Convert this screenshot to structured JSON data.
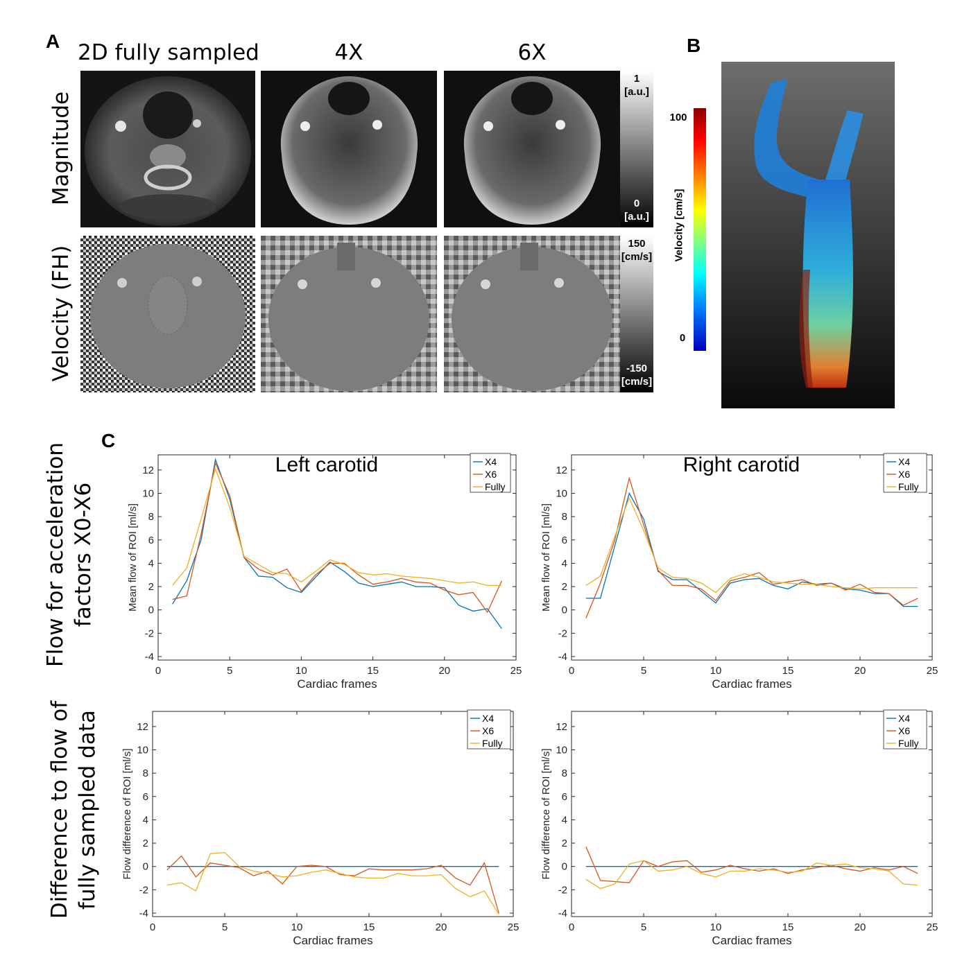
{
  "panels": {
    "a": "A",
    "b": "B",
    "c": "C"
  },
  "columns": [
    "2D fully sampled",
    "4X",
    "6X"
  ],
  "rows": [
    "Magnitude",
    "Velocity (FH)"
  ],
  "magnitude_colorbar": {
    "top_value": "1",
    "top_unit": "[a.u.]",
    "bottom_value": "0",
    "bottom_unit": "[a.u.]"
  },
  "velocity_colorbar": {
    "top_value": "150",
    "top_unit": "[cm/s]",
    "bottom_value": "-150",
    "bottom_unit": "[cm/s]"
  },
  "streamline_colorbar": {
    "label": "Velocity [cm/s]",
    "max": "100",
    "min": "0"
  },
  "section_c_rows": {
    "top": [
      "Flow for acceleration",
      "factors X0-X6"
    ],
    "bottom": [
      "Difference to flow of",
      "fully sampled data"
    ]
  },
  "colors": {
    "x4": "#0072BD",
    "x6": "#D95319",
    "fully": "#EDB120"
  },
  "chart_data": [
    {
      "type": "line",
      "title": "Left carotid",
      "xlabel": "Cardiac frames",
      "ylabel": "Mean flow of ROI [ml/s]",
      "xlim": [
        0,
        25
      ],
      "ylim": [
        -4.3,
        13.3
      ],
      "xticks": [
        0,
        5,
        10,
        15,
        20,
        25
      ],
      "yticks": [
        -4,
        -2,
        0,
        2,
        4,
        6,
        8,
        10,
        12
      ],
      "legend": "top-right",
      "x": [
        1,
        2,
        3,
        4,
        5,
        6,
        7,
        8,
        9,
        10,
        11,
        12,
        13,
        14,
        15,
        16,
        17,
        18,
        19,
        20,
        21,
        22,
        23,
        24
      ],
      "series": [
        {
          "name": "X4",
          "values": [
            0.5,
            2.5,
            6.0,
            12.9,
            9.5,
            4.5,
            2.9,
            2.8,
            1.9,
            1.5,
            2.8,
            4.1,
            3.3,
            2.3,
            2.0,
            2.2,
            2.4,
            2.0,
            2.0,
            1.9,
            0.4,
            -0.1,
            0.1,
            -1.6
          ]
        },
        {
          "name": "X6",
          "values": [
            0.9,
            1.2,
            6.5,
            12.6,
            9.8,
            4.5,
            3.5,
            3.0,
            3.5,
            1.6,
            3.0,
            4.0,
            4.0,
            3.0,
            2.2,
            2.4,
            2.7,
            2.4,
            2.3,
            1.7,
            1.3,
            1.5,
            -0.2,
            2.5
          ]
        },
        {
          "name": "Fully",
          "values": [
            2.1,
            3.6,
            7.8,
            12.1,
            8.8,
            4.6,
            3.9,
            3.2,
            3.1,
            2.4,
            3.3,
            4.3,
            3.9,
            3.2,
            3.0,
            3.1,
            2.9,
            2.8,
            2.7,
            2.5,
            2.3,
            2.4,
            2.1,
            2.1
          ]
        }
      ]
    },
    {
      "type": "line",
      "title": "Right carotid",
      "xlabel": "Cardiac frames",
      "ylabel": "Mean flow of ROI [ml/s]",
      "xlim": [
        0,
        25
      ],
      "ylim": [
        -4.3,
        13.3
      ],
      "xticks": [
        0,
        5,
        10,
        15,
        20,
        25
      ],
      "yticks": [
        -4,
        -2,
        0,
        2,
        4,
        6,
        8,
        10,
        12
      ],
      "legend": "top-right",
      "x": [
        1,
        2,
        3,
        4,
        5,
        6,
        7,
        8,
        9,
        10,
        11,
        12,
        13,
        14,
        15,
        16,
        17,
        18,
        19,
        20,
        21,
        22,
        23,
        24
      ],
      "series": [
        {
          "name": "X4",
          "values": [
            1.0,
            1.0,
            5.5,
            10.0,
            7.8,
            3.3,
            2.6,
            2.6,
            1.6,
            0.6,
            2.3,
            2.6,
            2.7,
            2.1,
            1.8,
            2.4,
            2.2,
            2.3,
            1.8,
            1.7,
            1.4,
            1.4,
            0.3,
            0.3
          ]
        },
        {
          "name": "X6",
          "values": [
            -0.7,
            2.3,
            6.0,
            11.3,
            7.3,
            3.4,
            2.1,
            2.1,
            1.8,
            0.8,
            2.5,
            2.8,
            3.2,
            2.2,
            2.4,
            2.6,
            2.1,
            2.3,
            1.7,
            2.2,
            1.5,
            1.4,
            0.4,
            1.0
          ]
        },
        {
          "name": "Fully",
          "values": [
            2.1,
            2.9,
            6.3,
            9.6,
            6.8,
            3.6,
            2.8,
            2.7,
            2.3,
            1.5,
            2.7,
            3.1,
            2.8,
            2.4,
            2.3,
            2.2,
            2.2,
            2.0,
            1.9,
            1.8,
            1.9,
            1.9,
            1.9,
            1.9
          ]
        }
      ]
    },
    {
      "type": "line",
      "xlabel": "Cardiac frames",
      "ylabel": "Flow difference of ROI [ml/s]",
      "xlim": [
        0,
        25
      ],
      "ylim": [
        -4.3,
        13.3
      ],
      "xticks": [
        0,
        5,
        10,
        15,
        20,
        25
      ],
      "yticks": [
        -4,
        -2,
        0,
        2,
        4,
        6,
        8,
        10,
        12
      ],
      "legend": "top-right",
      "x": [
        1,
        2,
        3,
        4,
        5,
        6,
        7,
        8,
        9,
        10,
        11,
        12,
        13,
        14,
        15,
        16,
        17,
        18,
        19,
        20,
        21,
        22,
        23,
        24
      ],
      "series": [
        {
          "name": "X4",
          "values": [
            0,
            0,
            0,
            0,
            0,
            0,
            0,
            0,
            0,
            0,
            0,
            0,
            0,
            0,
            0,
            0,
            0,
            0,
            0,
            0,
            0,
            0,
            0,
            0
          ]
        },
        {
          "name": "X6",
          "values": [
            -0.3,
            0.9,
            -0.9,
            0.3,
            0.1,
            -0.1,
            -0.8,
            -0.4,
            -1.5,
            0.0,
            0.1,
            0.0,
            -0.7,
            -0.8,
            -0.2,
            -0.3,
            -0.3,
            -0.3,
            -0.2,
            0.1,
            -1.0,
            -1.6,
            0.3,
            -4.0
          ]
        },
        {
          "name": "Fully",
          "values": [
            -1.6,
            -1.4,
            -2.1,
            1.1,
            1.2,
            0.0,
            -0.4,
            -0.6,
            -0.9,
            -0.8,
            -0.5,
            -0.3,
            -0.6,
            -0.9,
            -1.0,
            -1.0,
            -0.6,
            -0.8,
            -0.8,
            -0.7,
            -1.9,
            -2.6,
            -2.1,
            -4.1
          ]
        }
      ]
    },
    {
      "type": "line",
      "xlabel": "Cardiac frames",
      "ylabel": "Flow difference of ROI [ml/s]",
      "xlim": [
        0,
        25
      ],
      "ylim": [
        -4.3,
        13.3
      ],
      "xticks": [
        0,
        5,
        10,
        15,
        20,
        25
      ],
      "yticks": [
        -4,
        -2,
        0,
        2,
        4,
        6,
        8,
        10,
        12
      ],
      "legend": "top-right",
      "x": [
        1,
        2,
        3,
        4,
        5,
        6,
        7,
        8,
        9,
        10,
        11,
        12,
        13,
        14,
        15,
        16,
        17,
        18,
        19,
        20,
        21,
        22,
        23,
        24
      ],
      "series": [
        {
          "name": "X4",
          "values": [
            0,
            0,
            0,
            0,
            0,
            0,
            0,
            0,
            0,
            0,
            0,
            0,
            0,
            0,
            0,
            0,
            0,
            0,
            0,
            0,
            0,
            0,
            0,
            0
          ]
        },
        {
          "name": "X6",
          "values": [
            1.7,
            -1.2,
            -1.3,
            -1.4,
            0.5,
            0.0,
            0.4,
            0.5,
            -0.5,
            -0.3,
            0.1,
            -0.2,
            -0.4,
            -0.2,
            -0.6,
            -0.3,
            -0.1,
            0.1,
            -0.2,
            -0.4,
            -0.1,
            -0.3,
            0.0,
            -0.6
          ]
        },
        {
          "name": "Fully",
          "values": [
            -1.1,
            -1.9,
            -1.5,
            0.2,
            0.5,
            -0.4,
            -0.3,
            0.0,
            -0.6,
            -0.9,
            -0.4,
            -0.4,
            -0.2,
            -0.3,
            -0.5,
            -0.4,
            0.3,
            0.1,
            0.2,
            -0.1,
            -0.2,
            -0.4,
            -1.5,
            -1.6
          ]
        }
      ]
    }
  ]
}
